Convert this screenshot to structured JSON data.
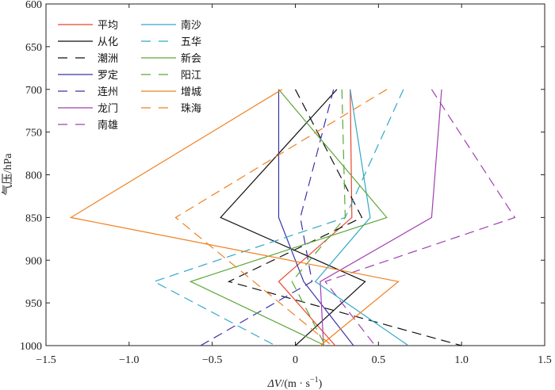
{
  "chart_data": {
    "type": "line",
    "xlabel_prefix": "ΔV",
    "xlabel_unit": "/(m · s",
    "xlabel_exp": "−1",
    "xlabel_close": ")",
    "ylabel": "气压/hPa",
    "xlim": [
      -1.5,
      1.5
    ],
    "ylim": [
      600,
      1000
    ],
    "y_reversed": true,
    "x_ticks": [
      -1.5,
      -1.0,
      -0.5,
      0,
      0.5,
      1.0,
      1.5
    ],
    "x_tick_labels": [
      "−1.5",
      "−1.0",
      "−0.5",
      "0",
      "0.5",
      "1.0",
      "1.5"
    ],
    "y_ticks": [
      600,
      650,
      700,
      750,
      800,
      850,
      900,
      950,
      1000
    ],
    "y_tick_labels": [
      "600",
      "650",
      "700",
      "750",
      "800",
      "850",
      "900",
      "950",
      "1000"
    ],
    "grid": false,
    "legend_position": "top-left",
    "y_levels": [
      700,
      850,
      925,
      1000
    ],
    "series": [
      {
        "name": "平均",
        "color": "#e8452c",
        "dash": "solid",
        "x": [
          0.33,
          0.34,
          -0.1,
          0.24
        ],
        "y": [
          700,
          850,
          925,
          1000
        ]
      },
      {
        "name": "从化",
        "color": "#111111",
        "dash": "solid",
        "x": [
          0.25,
          -0.45,
          0.42,
          0.0
        ],
        "y": [
          700,
          850,
          925,
          1000
        ]
      },
      {
        "name": "潮洲",
        "color": "#111111",
        "dash": "dashed",
        "x": [
          0.0,
          0.4,
          -0.4,
          1.0
        ],
        "y": [
          700,
          850,
          925,
          1000
        ]
      },
      {
        "name": "罗定",
        "color": "#3a35a8",
        "dash": "solid",
        "x": [
          -0.1,
          -0.1,
          0.05,
          0.35
        ],
        "y": [
          700,
          850,
          925,
          1000
        ]
      },
      {
        "name": "连州",
        "color": "#3a35a8",
        "dash": "dashed",
        "x": [
          0.23,
          0.03,
          0.1,
          -0.57
        ],
        "y": [
          700,
          850,
          925,
          1000
        ]
      },
      {
        "name": "龙门",
        "color": "#a040b0",
        "dash": "solid",
        "x": [
          0.88,
          0.82,
          0.15,
          0.17
        ],
        "y": [
          700,
          850,
          925,
          1000
        ]
      },
      {
        "name": "南雄",
        "color": "#a040b0",
        "dash": "dashed",
        "x": [
          0.82,
          1.32,
          0.18,
          0.48
        ],
        "y": [
          700,
          850,
          925,
          1000
        ]
      },
      {
        "name": "南沙",
        "color": "#30a8c8",
        "dash": "solid",
        "x": [
          0.33,
          0.45,
          0.12,
          0.68
        ],
        "y": [
          700,
          850,
          925,
          1000
        ]
      },
      {
        "name": "五华",
        "color": "#30a8c8",
        "dash": "dashed",
        "x": [
          0.65,
          0.3,
          -0.85,
          -0.12
        ],
        "y": [
          700,
          850,
          925,
          1000
        ]
      },
      {
        "name": "新会",
        "color": "#5ca838",
        "dash": "solid",
        "x": [
          -0.1,
          0.55,
          -0.63,
          0.18
        ],
        "y": [
          700,
          850,
          925,
          1000
        ]
      },
      {
        "name": "阳江",
        "color": "#5ca838",
        "dash": "dashed",
        "x": [
          0.28,
          0.3,
          -0.02,
          0.18
        ],
        "y": [
          700,
          850,
          925,
          1000
        ]
      },
      {
        "name": "增城",
        "color": "#f08020",
        "dash": "solid",
        "x": [
          -0.08,
          -1.35,
          0.62,
          0.15
        ],
        "y": [
          700,
          850,
          925,
          1000
        ]
      },
      {
        "name": "珠海",
        "color": "#f08020",
        "dash": "dashed",
        "x": [
          0.55,
          -0.72,
          -0.25,
          0.22
        ],
        "y": [
          700,
          850,
          925,
          1000
        ]
      }
    ]
  }
}
